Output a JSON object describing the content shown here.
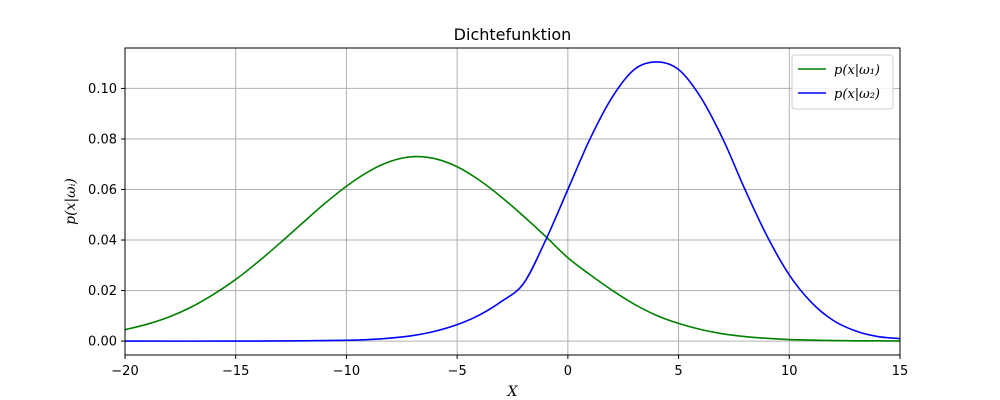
{
  "chart_data": {
    "type": "line",
    "title": "Dichtefunktion",
    "xlabel": "X",
    "ylabel": "p(x|ωᵢ)",
    "xlim": [
      -20,
      15
    ],
    "ylim": [
      -0.0055,
      0.116
    ],
    "xticks": [
      -20,
      -15,
      -10,
      -5,
      0,
      5,
      10,
      15
    ],
    "xtick_labels": [
      "−20",
      "−15",
      "−10",
      "−5",
      "0",
      "5",
      "10",
      "15"
    ],
    "yticks": [
      0.0,
      0.02,
      0.04,
      0.06,
      0.08,
      0.1
    ],
    "ytick_labels": [
      "0.00",
      "0.02",
      "0.04",
      "0.06",
      "0.08",
      "0.10"
    ],
    "grid": true,
    "legend_position": "top-right",
    "series": [
      {
        "name": "p(x|ω₁)",
        "color": "#008000",
        "x": [
          -20,
          -19,
          -18,
          -17,
          -16,
          -15,
          -14,
          -13,
          -12,
          -11,
          -10,
          -9,
          -8,
          -7,
          -6,
          -5,
          -4,
          -3,
          -2,
          -1,
          0,
          1,
          2,
          3,
          4,
          5,
          6,
          7,
          8,
          9,
          10,
          11,
          12,
          13,
          14,
          15
        ],
        "values": [
          0.0045,
          0.0067,
          0.0096,
          0.0135,
          0.0185,
          0.0244,
          0.0313,
          0.0388,
          0.0466,
          0.0543,
          0.0613,
          0.0671,
          0.0712,
          0.073,
          0.0722,
          0.069,
          0.0637,
          0.057,
          0.0494,
          0.0414,
          0.033,
          0.0263,
          0.0201,
          0.0146,
          0.0102,
          0.007,
          0.0046,
          0.0029,
          0.0018,
          0.0011,
          0.0006,
          0.0004,
          0.0002,
          0.0001,
          0.0001,
          0.0
        ]
      },
      {
        "name": "p(x|ω₂)",
        "color": "#0000ff",
        "x": [
          -20,
          -15,
          -12,
          -10,
          -9,
          -8,
          -7,
          -6,
          -5,
          -4,
          -3,
          -2,
          -1,
          0,
          1,
          2,
          3,
          4,
          5,
          6,
          7,
          8,
          9,
          10,
          11,
          12,
          13,
          14,
          15
        ],
        "values": [
          0.0,
          0.0,
          0.0001,
          0.0003,
          0.0006,
          0.0012,
          0.0022,
          0.0039,
          0.0065,
          0.0103,
          0.0157,
          0.0228,
          0.04,
          0.06,
          0.08,
          0.0965,
          0.1075,
          0.1105,
          0.1075,
          0.0965,
          0.08,
          0.06,
          0.0415,
          0.0262,
          0.0153,
          0.0081,
          0.004,
          0.0018,
          0.001
        ]
      }
    ]
  }
}
